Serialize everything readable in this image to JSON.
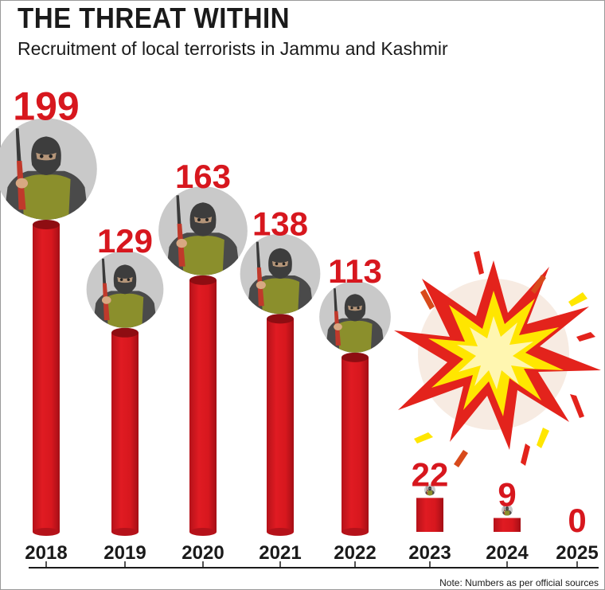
{
  "title": "THE THREAT WITHIN",
  "subtitle": "Recruitment of local terrorists in Jammu and Kashmir",
  "note": "Note: Numbers as per official sources",
  "colors": {
    "bar": "#d7171e",
    "bar_dark": "#8e0d12",
    "value_label": "#d7171e",
    "olive": "#8b8f2c",
    "avatar_bg": "#c9c9c9"
  },
  "icons": [
    "gunman-avatar-icon",
    "explosion-icon"
  ],
  "chart_data": {
    "type": "bar",
    "title": "THE THREAT WITHIN",
    "subtitle": "Recruitment of local terrorists in Jammu and Kashmir",
    "xlabel": "",
    "ylabel": "",
    "ylim": [
      0,
      199
    ],
    "grid": false,
    "categories": [
      "2018",
      "2019",
      "2020",
      "2021",
      "2022",
      "2023",
      "2024",
      "2025"
    ],
    "values": [
      199,
      129,
      163,
      138,
      113,
      22,
      9,
      0
    ],
    "value_labels": [
      "199",
      "129",
      "163",
      "138",
      "113",
      "22",
      "9",
      "0"
    ]
  }
}
